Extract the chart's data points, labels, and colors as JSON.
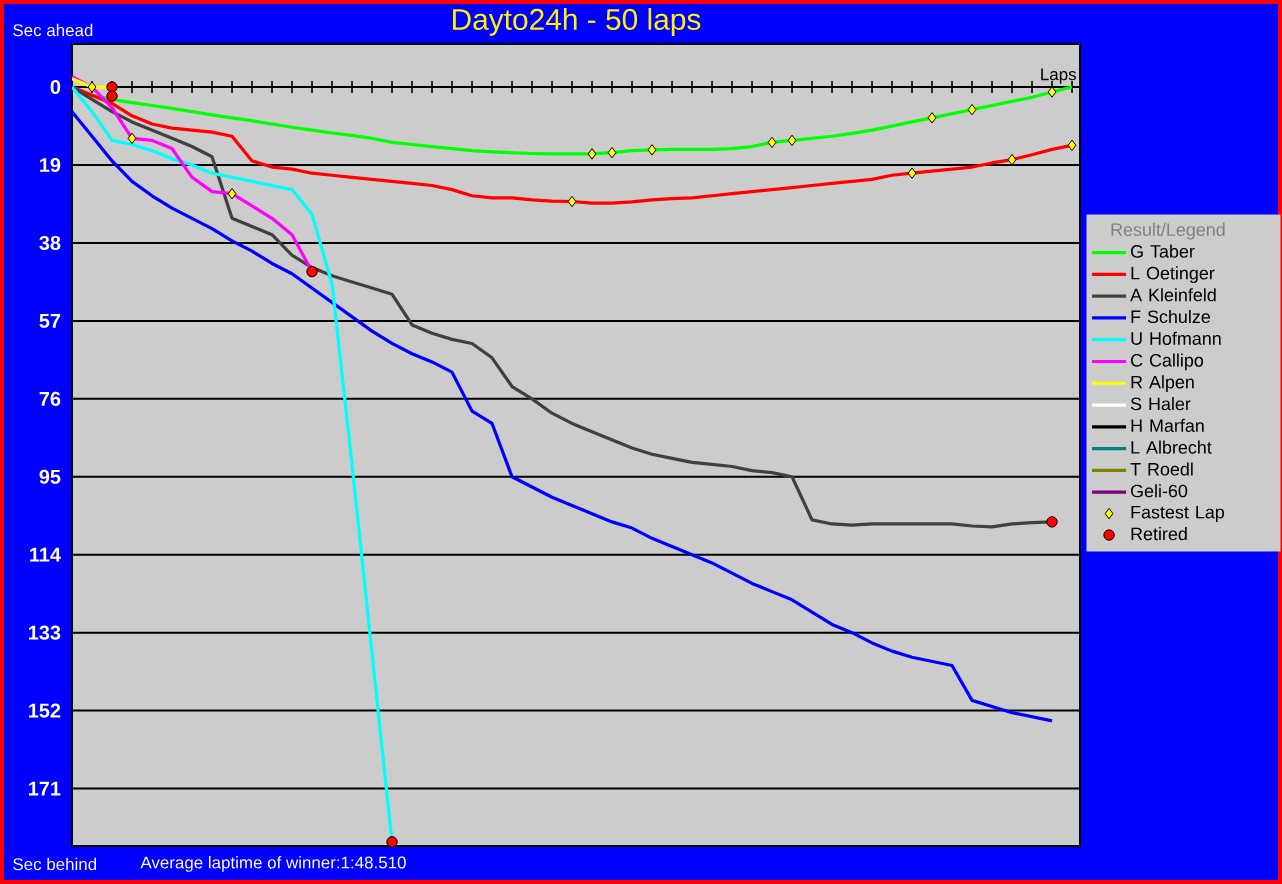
{
  "chart_data": {
    "type": "line",
    "title": "Dayto24h - 50 laps",
    "xlabel": "Laps",
    "legend_title": "Result/Legend",
    "annotations": [
      "Sec ahead",
      "Sec behind",
      "Average laptime of winner:1:48.510"
    ],
    "categories": [
      null,
      null,
      null,
      null,
      null,
      null,
      null,
      null,
      null,
      null,
      null,
      null,
      null,
      null,
      null,
      null,
      null,
      null,
      null,
      null,
      null,
      null,
      null,
      null,
      null,
      null,
      null,
      null,
      null,
      null,
      null,
      null,
      null,
      null,
      null,
      null,
      null,
      null,
      null,
      null,
      null,
      null,
      null,
      null,
      null,
      null,
      null,
      null,
      null,
      null,
      null
    ],
    "ylim": [
      185,
      -10.5
    ],
    "yticks": [
      0,
      19,
      38,
      57,
      76,
      95,
      114,
      133,
      152,
      171
    ],
    "tick_labels": "y",
    "grid": "y",
    "legend": "right",
    "series": [
      {
        "name": "G Taber",
        "color": "#00ff00",
        "values": [
          0,
          2,
          3,
          3.8,
          4.5,
          5.2,
          6,
          6.8,
          7.5,
          8.2,
          9,
          9.8,
          10.5,
          11.2,
          11.8,
          12.5,
          13.5,
          14,
          14.5,
          15,
          15.5,
          15.8,
          16,
          16.2,
          16.3,
          16.3,
          16.3,
          16,
          15.5,
          15.3,
          15.2,
          15.2,
          15.2,
          15,
          14.5,
          13.5,
          13,
          12.5,
          12,
          11.3,
          10.5,
          9.5,
          8.5,
          7.5,
          6.5,
          5.5,
          4.5,
          3.5,
          2.5,
          1.2,
          0
        ]
      },
      {
        "name": "L Oetinger",
        "color": "#ff0000",
        "values": [
          0,
          2,
          4,
          7,
          9,
          10,
          10.5,
          11,
          12,
          18,
          19.5,
          20,
          21,
          21.5,
          22,
          22.5,
          23,
          23.5,
          24,
          25,
          26.5,
          27,
          27,
          27.5,
          27.8,
          27.9,
          28.3,
          28.3,
          28,
          27.5,
          27.2,
          27,
          26.5,
          26,
          25.5,
          25,
          24.5,
          24,
          23.5,
          23,
          22.5,
          21.5,
          21,
          20.5,
          20,
          19.5,
          18.5,
          17.7,
          16.5,
          15.2,
          14.2
        ]
      },
      {
        "name": "A Kleinfeld",
        "color": "#404040",
        "values": [
          0,
          3,
          6,
          8.5,
          10.5,
          12.5,
          14.5,
          17,
          32,
          34,
          36,
          41,
          44,
          46,
          47.5,
          49,
          50.5,
          58,
          60,
          61.5,
          62.5,
          66,
          73,
          76,
          79.5,
          82,
          84,
          86,
          88,
          89.5,
          90.5,
          91.5,
          92,
          92.5,
          93.5,
          94,
          95,
          105.5,
          106.5,
          106.8,
          106.5,
          106.5,
          106.5,
          106.5,
          106.5,
          107,
          107.2,
          106.5,
          106.2,
          106,
          null
        ]
      },
      {
        "name": "F Schulze",
        "color": "#0000ff",
        "values": [
          6,
          12,
          18,
          23,
          26.5,
          29.5,
          32,
          34.5,
          37.5,
          40,
          43,
          45.5,
          49,
          52.5,
          56,
          59.5,
          62.5,
          65,
          67,
          69.5,
          79,
          82,
          95,
          97.5,
          100,
          102,
          104,
          106,
          107.5,
          110,
          112,
          114,
          116,
          118.5,
          121,
          123,
          125,
          128,
          131,
          133,
          135.5,
          137.5,
          139,
          140,
          141,
          149.5,
          151,
          152.5,
          153.5,
          154.5,
          null
        ]
      },
      {
        "name": "U Hofmann",
        "color": "#00ffff",
        "values": [
          0,
          6,
          13,
          14,
          15.5,
          17.5,
          19,
          21,
          22,
          23,
          24,
          25,
          31,
          48,
          92,
          138,
          184,
          null,
          null,
          null,
          null,
          null,
          null,
          null,
          null,
          null,
          null,
          null,
          null,
          null,
          null,
          null,
          null,
          null,
          null,
          null,
          null,
          null,
          null,
          null,
          null,
          null,
          null,
          null,
          null,
          null,
          null,
          null,
          null,
          null,
          null
        ]
      },
      {
        "name": "C Callipo",
        "color": "#ff00ff",
        "values": [
          -2.5,
          0,
          5,
          12.5,
          13,
          15,
          22,
          25.5,
          26,
          29,
          32,
          36,
          45,
          null,
          null,
          null,
          null,
          null,
          null,
          null,
          null,
          null,
          null,
          null,
          null,
          null,
          null,
          null,
          null,
          null,
          null,
          null,
          null,
          null,
          null,
          null,
          null,
          null,
          null,
          null,
          null,
          null,
          null,
          null,
          null,
          null,
          null,
          null,
          null,
          null,
          null
        ]
      },
      {
        "name": "R Alpen",
        "color": "#ffff00",
        "values": [
          -2,
          0,
          0,
          null,
          null,
          null,
          null,
          null,
          null,
          null,
          null,
          null,
          null,
          null,
          null,
          null,
          null,
          null,
          null,
          null,
          null,
          null,
          null,
          null,
          null,
          null,
          null,
          null,
          null,
          null,
          null,
          null,
          null,
          null,
          null,
          null,
          null,
          null,
          null,
          null,
          null,
          null,
          null,
          null,
          null,
          null,
          null,
          null,
          null,
          null,
          null
        ]
      },
      {
        "name": "S Haler",
        "color": "#ffffff",
        "values": [
          null,
          null,
          null,
          null,
          null,
          null,
          null,
          null,
          null,
          null,
          null,
          null,
          null,
          null,
          null,
          null,
          null,
          null,
          null,
          null,
          null,
          null,
          null,
          null,
          null,
          null,
          null,
          null,
          null,
          null,
          null,
          null,
          null,
          null,
          null,
          null,
          null,
          null,
          null,
          null,
          null,
          null,
          null,
          null,
          null,
          null,
          null,
          null,
          null,
          null,
          null
        ]
      },
      {
        "name": "H Marfan",
        "color": "#000000",
        "values": [
          null,
          null,
          null,
          null,
          null,
          null,
          null,
          null,
          null,
          null,
          null,
          null,
          null,
          null,
          null,
          null,
          null,
          null,
          null,
          null,
          null,
          null,
          null,
          null,
          null,
          null,
          null,
          null,
          null,
          null,
          null,
          null,
          null,
          null,
          null,
          null,
          null,
          null,
          null,
          null,
          null,
          null,
          null,
          null,
          null,
          null,
          null,
          null,
          null,
          null,
          null
        ]
      },
      {
        "name": "L Albrecht",
        "color": "#008080",
        "values": [
          null,
          null,
          null,
          null,
          null,
          null,
          null,
          null,
          null,
          null,
          null,
          null,
          null,
          null,
          null,
          null,
          null,
          null,
          null,
          null,
          null,
          null,
          null,
          null,
          null,
          null,
          null,
          null,
          null,
          null,
          null,
          null,
          null,
          null,
          null,
          null,
          null,
          null,
          null,
          null,
          null,
          null,
          null,
          null,
          null,
          null,
          null,
          null,
          null,
          null,
          null
        ]
      },
      {
        "name": "T Roedl",
        "color": "#808000",
        "values": [
          null,
          null,
          null,
          null,
          null,
          null,
          null,
          null,
          null,
          null,
          null,
          null,
          null,
          null,
          null,
          null,
          null,
          null,
          null,
          null,
          null,
          null,
          null,
          null,
          null,
          null,
          null,
          null,
          null,
          null,
          null,
          null,
          null,
          null,
          null,
          null,
          null,
          null,
          null,
          null,
          null,
          null,
          null,
          null,
          null,
          null,
          null,
          null,
          null,
          null,
          null
        ]
      },
      {
        "name": "Geli-60",
        "color": "#800080",
        "values": [
          null,
          null,
          null,
          null,
          null,
          null,
          null,
          null,
          null,
          null,
          null,
          null,
          null,
          null,
          null,
          null,
          null,
          null,
          null,
          null,
          null,
          null,
          null,
          null,
          null,
          null,
          null,
          null,
          null,
          null,
          null,
          null,
          null,
          null,
          null,
          null,
          null,
          null,
          null,
          null,
          null,
          null,
          null,
          null,
          null,
          null,
          null,
          null,
          null,
          null,
          null
        ]
      },
      {
        "name": "Fastest Lap",
        "type": "scatter",
        "marker": "diamond",
        "color": "#ffff00",
        "values": [
          null,
          0,
          null,
          12.5,
          null,
          null,
          null,
          null,
          26,
          null,
          null,
          null,
          null,
          null,
          null,
          null,
          null,
          null,
          null,
          null,
          null,
          null,
          null,
          null,
          null,
          27.9,
          16.3,
          16,
          null,
          15.3,
          null,
          null,
          null,
          null,
          null,
          13.5,
          13,
          null,
          null,
          null,
          null,
          null,
          21,
          7.5,
          null,
          5.5,
          null,
          17.7,
          null,
          1.2,
          14.2
        ]
      },
      {
        "name": "Retired",
        "type": "scatter",
        "marker": "circle",
        "color": "#ff0000",
        "values": [
          null,
          null,
          0,
          null,
          null,
          null,
          null,
          null,
          null,
          null,
          null,
          null,
          45,
          null,
          null,
          null,
          184,
          null,
          null,
          null,
          null,
          null,
          null,
          null,
          null,
          null,
          null,
          null,
          null,
          null,
          null,
          null,
          null,
          null,
          null,
          null,
          null,
          null,
          null,
          null,
          null,
          null,
          null,
          null,
          null,
          null,
          null,
          null,
          null,
          106,
          null
        ]
      },
      {
        "type": "scatter",
        "marker": "circle",
        "color": "#ff0000",
        "values": [
          null,
          null,
          2.2,
          null,
          null,
          null,
          null,
          null,
          null,
          null,
          null,
          null,
          null,
          null,
          null,
          null,
          null,
          null,
          null,
          null,
          null,
          null,
          null,
          null,
          null,
          null,
          null,
          null,
          null,
          null,
          null,
          null,
          null,
          null,
          null,
          null,
          null,
          null,
          null,
          null,
          null,
          null,
          null,
          null,
          null,
          null,
          null,
          null,
          null,
          null,
          null
        ]
      }
    ]
  }
}
